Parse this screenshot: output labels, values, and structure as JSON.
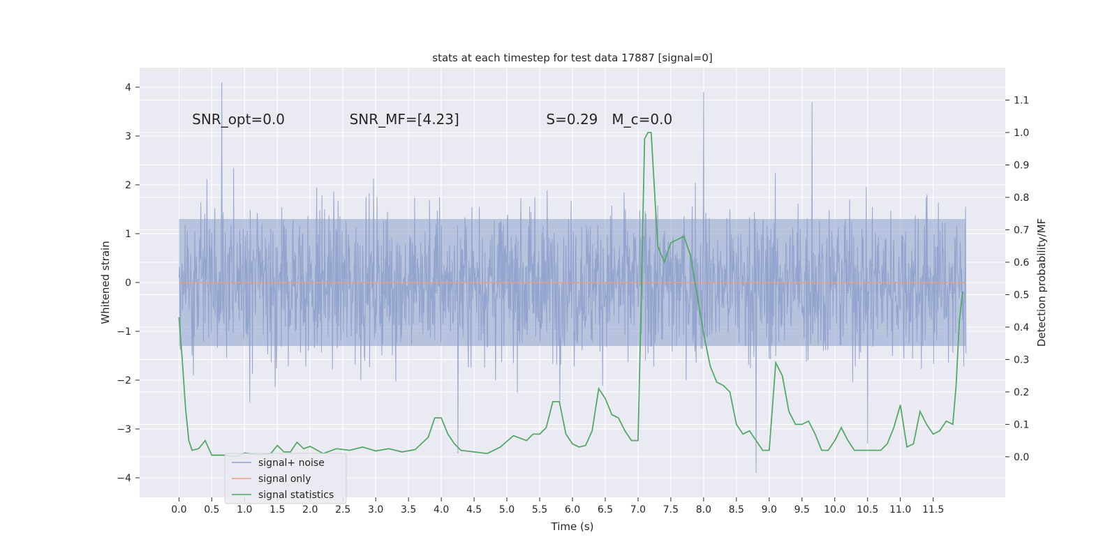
{
  "chart_data": {
    "type": "line",
    "title": "stats at each timestep for test data 17887 [signal=0]",
    "xlabel": "Time (s)",
    "ylabel_left": "Whitened strain",
    "ylabel_right": "Detection probability/MF",
    "xlim": [
      -0.6,
      12.6
    ],
    "ylim_left": [
      -4.4,
      4.4
    ],
    "ylim_right": [
      -0.125,
      1.2
    ],
    "x_ticks": [
      0.0,
      0.5,
      1.0,
      1.5,
      2.0,
      2.5,
      3.0,
      3.5,
      4.0,
      4.5,
      5.0,
      5.5,
      6.0,
      6.5,
      7.0,
      7.5,
      8.0,
      8.5,
      9.0,
      9.5,
      10.0,
      10.5,
      11.0,
      11.5
    ],
    "x_tick_labels": [
      "0.0",
      "0.5",
      "1.0",
      "1.5",
      "2.0",
      "2.5",
      "3.0",
      "3.5",
      "4.0",
      "4.5",
      "5.0",
      "5.5",
      "6.0",
      "6.5",
      "7.0",
      "7.5",
      "8.0",
      "8.5",
      "9.0",
      "9.5",
      "10.0",
      "10.5",
      "11.0",
      "11.5"
    ],
    "y_left_ticks": [
      -4,
      -3,
      -2,
      -1,
      0,
      1,
      2,
      3,
      4
    ],
    "y_left_tick_labels": [
      "−4",
      "−3",
      "−2",
      "−1",
      "0",
      "1",
      "2",
      "3",
      "4"
    ],
    "y_right_ticks": [
      0.0,
      0.1,
      0.2,
      0.3,
      0.4,
      0.5,
      0.6,
      0.7,
      0.8,
      0.9,
      1.0,
      1.1
    ],
    "y_right_tick_labels": [
      "0.0",
      "0.1",
      "0.2",
      "0.3",
      "0.4",
      "0.5",
      "0.6",
      "0.7",
      "0.8",
      "0.9",
      "1.0",
      "1.1"
    ],
    "grid": true,
    "legend_position": "lower-left",
    "annotations": [
      {
        "id": "snr-opt",
        "text": "SNR_opt=0.0",
        "x": 0.2,
        "y": 3.3
      },
      {
        "id": "snr-mf",
        "text": "SNR_MF=[4.23]",
        "x": 2.6,
        "y": 3.3
      },
      {
        "id": "s-value",
        "text": "S=0.29",
        "x": 5.6,
        "y": 3.3
      },
      {
        "id": "mc-value",
        "text": "M_c=0.0",
        "x": 6.6,
        "y": 3.3
      }
    ],
    "series": [
      {
        "name": "signal+ noise",
        "axis": "left",
        "color": "#8da0cb",
        "t_range": [
          0.0,
          12.0
        ],
        "envelope_outer": [
          -2.6,
          2.6
        ],
        "envelope_core": [
          -1.3,
          1.3
        ],
        "spike_extremes": [
          [
            0.65,
            4.1
          ],
          [
            8.0,
            3.9
          ],
          [
            9.65,
            3.7
          ],
          [
            8.8,
            -3.9
          ],
          [
            4.25,
            -3.5
          ],
          [
            10.5,
            -3.3
          ]
        ]
      },
      {
        "name": "signal only",
        "axis": "left",
        "color": "#e5a087",
        "x": [
          0.0,
          12.0
        ],
        "y": [
          0.0,
          0.0
        ]
      },
      {
        "name": "signal statistics",
        "axis": "right",
        "color": "#55a868",
        "x": [
          0.0,
          0.05,
          0.1,
          0.15,
          0.2,
          0.3,
          0.4,
          0.5,
          0.6,
          0.7,
          0.8,
          0.9,
          1.0,
          1.2,
          1.4,
          1.5,
          1.6,
          1.7,
          1.8,
          1.9,
          2.0,
          2.2,
          2.4,
          2.6,
          2.8,
          3.0,
          3.2,
          3.4,
          3.6,
          3.8,
          3.9,
          4.0,
          4.1,
          4.2,
          4.3,
          4.5,
          4.7,
          4.9,
          5.1,
          5.3,
          5.4,
          5.5,
          5.6,
          5.7,
          5.8,
          5.9,
          6.0,
          6.1,
          6.2,
          6.3,
          6.4,
          6.5,
          6.6,
          6.7,
          6.8,
          6.9,
          7.0,
          7.05,
          7.1,
          7.15,
          7.2,
          7.3,
          7.4,
          7.5,
          7.6,
          7.7,
          7.8,
          7.9,
          8.0,
          8.1,
          8.2,
          8.3,
          8.4,
          8.5,
          8.6,
          8.7,
          8.8,
          8.9,
          9.0,
          9.1,
          9.2,
          9.3,
          9.4,
          9.5,
          9.6,
          9.7,
          9.8,
          9.9,
          10.0,
          10.1,
          10.2,
          10.3,
          10.4,
          10.5,
          10.6,
          10.7,
          10.8,
          10.9,
          11.0,
          11.1,
          11.2,
          11.3,
          11.4,
          11.5,
          11.6,
          11.7,
          11.8,
          11.85,
          11.9,
          11.95
        ],
        "y": [
          0.43,
          0.3,
          0.15,
          0.05,
          0.02,
          0.025,
          0.05,
          0.005,
          0.005,
          0.005,
          0.002,
          0.002,
          0.012,
          0.006,
          0.01,
          0.035,
          0.015,
          0.015,
          0.045,
          0.025,
          0.032,
          0.01,
          0.025,
          0.02,
          0.03,
          0.018,
          0.025,
          0.015,
          0.022,
          0.06,
          0.12,
          0.12,
          0.07,
          0.04,
          0.02,
          0.015,
          0.01,
          0.03,
          0.065,
          0.05,
          0.07,
          0.07,
          0.09,
          0.17,
          0.17,
          0.07,
          0.04,
          0.03,
          0.035,
          0.08,
          0.21,
          0.18,
          0.13,
          0.12,
          0.08,
          0.05,
          0.05,
          0.5,
          0.98,
          1.0,
          1.0,
          0.65,
          0.6,
          0.66,
          0.67,
          0.68,
          0.62,
          0.5,
          0.38,
          0.28,
          0.23,
          0.22,
          0.2,
          0.1,
          0.07,
          0.08,
          0.05,
          0.02,
          0.02,
          0.29,
          0.25,
          0.14,
          0.1,
          0.1,
          0.11,
          0.07,
          0.02,
          0.02,
          0.05,
          0.09,
          0.05,
          0.02,
          0.02,
          0.02,
          0.02,
          0.02,
          0.04,
          0.09,
          0.16,
          0.03,
          0.04,
          0.14,
          0.1,
          0.07,
          0.08,
          0.11,
          0.1,
          0.22,
          0.42,
          0.51
        ]
      }
    ]
  }
}
